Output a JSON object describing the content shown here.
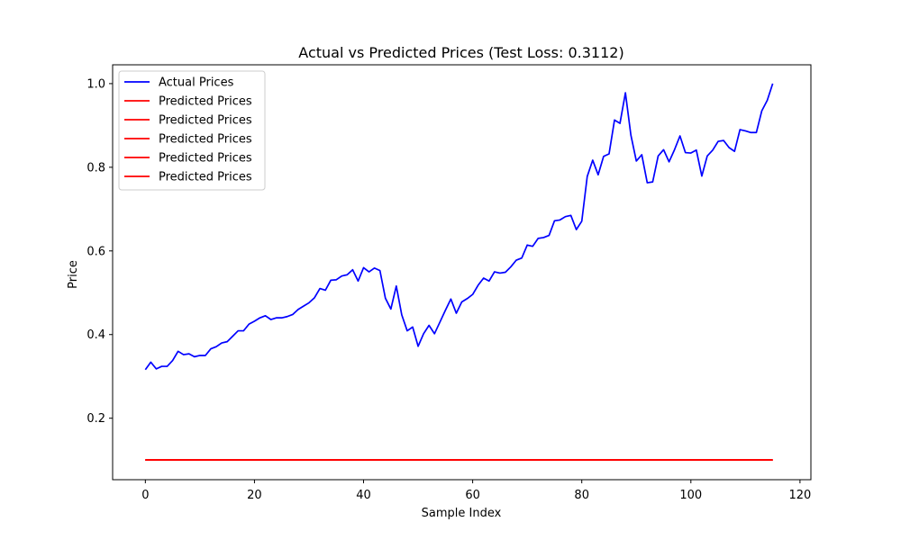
{
  "chart_data": {
    "type": "line",
    "title": "Actual vs Predicted Prices (Test Loss: 0.3112)",
    "xlabel": "Sample Index",
    "ylabel": "Price",
    "xlim": [
      -6,
      122
    ],
    "ylim": [
      0.053,
      1.045
    ],
    "xticks": [
      0,
      20,
      40,
      60,
      80,
      100,
      120
    ],
    "xtick_labels": [
      "0",
      "20",
      "40",
      "60",
      "80",
      "100",
      "120"
    ],
    "yticks": [
      0.2,
      0.4,
      0.6,
      0.8,
      1.0
    ],
    "ytick_labels": [
      "0.2",
      "0.4",
      "0.6",
      "0.8",
      "1.0"
    ],
    "grid": false,
    "legend_position": "top-left",
    "series": [
      {
        "name": "Actual Prices",
        "color": "#0000ff",
        "x": [
          0,
          1,
          2,
          3,
          4,
          5,
          6,
          7,
          8,
          9,
          10,
          11,
          12,
          13,
          14,
          15,
          16,
          17,
          18,
          19,
          20,
          21,
          22,
          23,
          24,
          25,
          26,
          27,
          28,
          29,
          30,
          31,
          32,
          33,
          34,
          35,
          36,
          37,
          38,
          39,
          40,
          41,
          42,
          43,
          44,
          45,
          46,
          47,
          48,
          49,
          50,
          51,
          52,
          53,
          54,
          55,
          56,
          57,
          58,
          59,
          60,
          61,
          62,
          63,
          64,
          65,
          66,
          67,
          68,
          69,
          70,
          71,
          72,
          73,
          74,
          75,
          76,
          77,
          78,
          79,
          80,
          81,
          82,
          83,
          84,
          85,
          86,
          87,
          88,
          89,
          90,
          91,
          92,
          93,
          94,
          95,
          96,
          97,
          98,
          99,
          100,
          101,
          102,
          103,
          104,
          105,
          106,
          107,
          108,
          109,
          110,
          111,
          112,
          113,
          114,
          115
        ],
        "values": [
          0.316,
          0.334,
          0.318,
          0.324,
          0.324,
          0.338,
          0.36,
          0.352,
          0.354,
          0.347,
          0.35,
          0.35,
          0.366,
          0.371,
          0.38,
          0.383,
          0.396,
          0.409,
          0.409,
          0.425,
          0.432,
          0.44,
          0.445,
          0.436,
          0.44,
          0.44,
          0.443,
          0.448,
          0.46,
          0.468,
          0.476,
          0.488,
          0.51,
          0.506,
          0.53,
          0.531,
          0.54,
          0.543,
          0.555,
          0.528,
          0.56,
          0.55,
          0.559,
          0.553,
          0.487,
          0.461,
          0.516,
          0.447,
          0.409,
          0.418,
          0.372,
          0.402,
          0.422,
          0.402,
          0.43,
          0.458,
          0.485,
          0.451,
          0.478,
          0.486,
          0.496,
          0.518,
          0.535,
          0.528,
          0.55,
          0.547,
          0.549,
          0.562,
          0.578,
          0.583,
          0.614,
          0.611,
          0.63,
          0.632,
          0.637,
          0.672,
          0.674,
          0.682,
          0.685,
          0.651,
          0.671,
          0.778,
          0.817,
          0.782,
          0.826,
          0.832,
          0.913,
          0.905,
          0.978,
          0.877,
          0.815,
          0.83,
          0.763,
          0.765,
          0.827,
          0.842,
          0.813,
          0.842,
          0.875,
          0.835,
          0.834,
          0.841,
          0.779,
          0.827,
          0.841,
          0.862,
          0.864,
          0.847,
          0.838,
          0.89,
          0.887,
          0.883,
          0.883,
          0.935,
          0.96,
          1.0
        ]
      },
      {
        "name": "Predicted Prices",
        "color": "#ff0000",
        "x": [
          0,
          115
        ],
        "values": [
          0.1,
          0.1
        ]
      },
      {
        "name": "Predicted Prices",
        "color": "#ff0000",
        "x": [
          0,
          115
        ],
        "values": [
          0.1,
          0.1
        ]
      },
      {
        "name": "Predicted Prices",
        "color": "#ff0000",
        "x": [
          0,
          115
        ],
        "values": [
          0.1,
          0.1
        ]
      },
      {
        "name": "Predicted Prices",
        "color": "#ff0000",
        "x": [
          0,
          115
        ],
        "values": [
          0.1,
          0.1
        ]
      },
      {
        "name": "Predicted Prices",
        "color": "#ff0000",
        "x": [
          0,
          115
        ],
        "values": [
          0.1,
          0.1
        ]
      }
    ]
  }
}
